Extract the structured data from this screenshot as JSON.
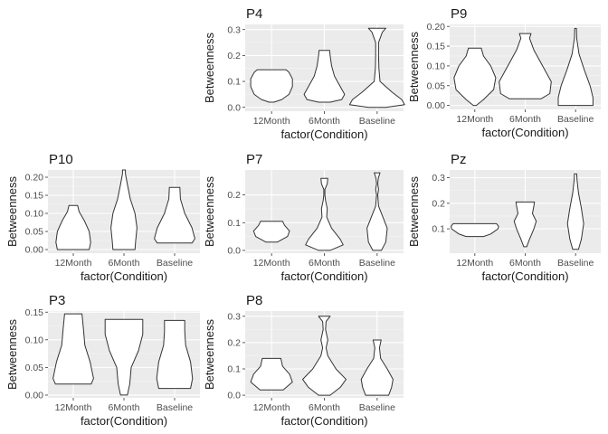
{
  "chart_data": [
    {
      "type": "violin",
      "title": "P4",
      "xlabel": "factor(Condition)",
      "ylabel": "Betweenness",
      "categories": [
        "12Month",
        "6Month",
        "Baseline"
      ],
      "ylim": [
        -0.015,
        0.32
      ],
      "yticks": [
        0.0,
        0.1,
        0.2,
        0.3
      ],
      "ytick_labels": [
        "0.0",
        "0.1",
        "0.2",
        "0.3"
      ],
      "grid": true,
      "violins": [
        {
          "category": "12Month",
          "profile": [
            [
              0.02,
              0.08
            ],
            [
              0.03,
              0.35
            ],
            [
              0.05,
              0.6
            ],
            [
              0.08,
              0.72
            ],
            [
              0.11,
              0.72
            ],
            [
              0.135,
              0.6
            ],
            [
              0.145,
              0.5
            ]
          ]
        },
        {
          "category": "6Month",
          "profile": [
            [
              0.02,
              0.2
            ],
            [
              0.03,
              0.6
            ],
            [
              0.05,
              0.7
            ],
            [
              0.08,
              0.55
            ],
            [
              0.12,
              0.35
            ],
            [
              0.16,
              0.25
            ],
            [
              0.2,
              0.2
            ],
            [
              0.22,
              0.18
            ]
          ]
        },
        {
          "category": "Baseline",
          "profile": [
            [
              0.0,
              0.3
            ],
            [
              0.01,
              0.95
            ],
            [
              0.03,
              0.85
            ],
            [
              0.06,
              0.5
            ],
            [
              0.1,
              0.1
            ],
            [
              0.15,
              0.06
            ],
            [
              0.2,
              0.05
            ],
            [
              0.25,
              0.05
            ],
            [
              0.29,
              0.18
            ],
            [
              0.305,
              0.3
            ]
          ]
        }
      ]
    },
    {
      "type": "violin",
      "title": "P9",
      "xlabel": "factor(Condition)",
      "ylabel": "Betweenness",
      "categories": [
        "12Month",
        "6Month",
        "Baseline"
      ],
      "ylim": [
        -0.01,
        0.205
      ],
      "yticks": [
        0.0,
        0.05,
        0.1,
        0.15,
        0.2
      ],
      "ytick_labels": [
        "0.00",
        "0.05",
        "0.10",
        "0.15",
        "0.20"
      ],
      "grid": true,
      "violins": [
        {
          "category": "12Month",
          "profile": [
            [
              0.0,
              0.05
            ],
            [
              0.015,
              0.3
            ],
            [
              0.04,
              0.65
            ],
            [
              0.07,
              0.72
            ],
            [
              0.1,
              0.55
            ],
            [
              0.125,
              0.3
            ],
            [
              0.145,
              0.22
            ]
          ]
        },
        {
          "category": "6Month",
          "profile": [
            [
              0.017,
              0.55
            ],
            [
              0.03,
              0.85
            ],
            [
              0.06,
              0.9
            ],
            [
              0.1,
              0.6
            ],
            [
              0.14,
              0.3
            ],
            [
              0.17,
              0.15
            ],
            [
              0.182,
              0.2
            ]
          ]
        },
        {
          "category": "Baseline",
          "profile": [
            [
              0.0,
              0.6
            ],
            [
              0.02,
              0.6
            ],
            [
              0.05,
              0.5
            ],
            [
              0.09,
              0.3
            ],
            [
              0.13,
              0.12
            ],
            [
              0.17,
              0.04
            ],
            [
              0.195,
              0.03
            ]
          ]
        }
      ]
    },
    {
      "type": "violin",
      "title": "P10",
      "xlabel": "factor(Condition)",
      "ylabel": "Betweenness",
      "categories": [
        "12Month",
        "6Month",
        "Baseline"
      ],
      "ylim": [
        -0.01,
        0.22
      ],
      "yticks": [
        0.0,
        0.05,
        0.1,
        0.15,
        0.2
      ],
      "ytick_labels": [
        "0.00",
        "0.05",
        "0.10",
        "0.15",
        "0.20"
      ],
      "grid": true,
      "violins": [
        {
          "category": "12Month",
          "profile": [
            [
              0.0,
              0.55
            ],
            [
              0.02,
              0.6
            ],
            [
              0.05,
              0.55
            ],
            [
              0.08,
              0.38
            ],
            [
              0.105,
              0.2
            ],
            [
              0.122,
              0.15
            ]
          ]
        },
        {
          "category": "6Month",
          "profile": [
            [
              0.0,
              0.38
            ],
            [
              0.02,
              0.4
            ],
            [
              0.06,
              0.45
            ],
            [
              0.1,
              0.38
            ],
            [
              0.14,
              0.22
            ],
            [
              0.18,
              0.12
            ],
            [
              0.21,
              0.05
            ],
            [
              0.22,
              0.05
            ]
          ]
        },
        {
          "category": "Baseline",
          "profile": [
            [
              0.018,
              0.6
            ],
            [
              0.03,
              0.7
            ],
            [
              0.06,
              0.6
            ],
            [
              0.1,
              0.35
            ],
            [
              0.14,
              0.2
            ],
            [
              0.172,
              0.18
            ]
          ]
        }
      ]
    },
    {
      "type": "violin",
      "title": "P7",
      "xlabel": "factor(Condition)",
      "ylabel": "Betweenness",
      "categories": [
        "12Month",
        "6Month",
        "Baseline"
      ],
      "ylim": [
        -0.01,
        0.29
      ],
      "yticks": [
        0.0,
        0.1,
        0.2
      ],
      "ytick_labels": [
        "0.0",
        "0.1",
        "0.2"
      ],
      "grid": true,
      "violins": [
        {
          "category": "12Month",
          "profile": [
            [
              0.03,
              0.2
            ],
            [
              0.05,
              0.55
            ],
            [
              0.07,
              0.62
            ],
            [
              0.09,
              0.45
            ],
            [
              0.105,
              0.38
            ]
          ]
        },
        {
          "category": "6Month",
          "profile": [
            [
              0.0,
              0.2
            ],
            [
              0.02,
              0.65
            ],
            [
              0.04,
              0.55
            ],
            [
              0.08,
              0.25
            ],
            [
              0.12,
              0.08
            ],
            [
              0.15,
              0.1
            ],
            [
              0.18,
              0.04
            ],
            [
              0.2,
              0.02
            ],
            [
              0.22,
              0.02
            ],
            [
              0.24,
              0.1
            ],
            [
              0.26,
              0.12
            ]
          ]
        },
        {
          "category": "Baseline",
          "profile": [
            [
              0.0,
              0.15
            ],
            [
              0.03,
              0.3
            ],
            [
              0.08,
              0.35
            ],
            [
              0.12,
              0.2
            ],
            [
              0.16,
              0.05
            ],
            [
              0.2,
              0.02
            ],
            [
              0.22,
              0.05
            ],
            [
              0.24,
              0.02
            ],
            [
              0.26,
              0.04
            ],
            [
              0.28,
              0.1
            ]
          ]
        }
      ]
    },
    {
      "type": "violin",
      "title": "Pz",
      "xlabel": "factor(Condition)",
      "ylabel": "Betweenness",
      "categories": [
        "12Month",
        "6Month",
        "Baseline"
      ],
      "ylim": [
        0.005,
        0.33
      ],
      "yticks": [
        0.1,
        0.2,
        0.3
      ],
      "ytick_labels": [
        "0.1",
        "0.2",
        "0.3"
      ],
      "grid": true,
      "violins": [
        {
          "category": "12Month",
          "profile": [
            [
              0.07,
              0.3
            ],
            [
              0.08,
              0.55
            ],
            [
              0.1,
              0.8
            ],
            [
              0.11,
              0.82
            ],
            [
              0.12,
              0.75
            ]
          ]
        },
        {
          "category": "6Month",
          "profile": [
            [
              0.03,
              0.05
            ],
            [
              0.06,
              0.15
            ],
            [
              0.1,
              0.3
            ],
            [
              0.13,
              0.38
            ],
            [
              0.16,
              0.25
            ],
            [
              0.19,
              0.3
            ],
            [
              0.205,
              0.32
            ]
          ]
        },
        {
          "category": "Baseline",
          "profile": [
            [
              0.02,
              0.1
            ],
            [
              0.06,
              0.2
            ],
            [
              0.12,
              0.28
            ],
            [
              0.18,
              0.2
            ],
            [
              0.24,
              0.1
            ],
            [
              0.29,
              0.05
            ],
            [
              0.315,
              0.04
            ]
          ]
        }
      ]
    },
    {
      "type": "violin",
      "title": "P3",
      "xlabel": "factor(Condition)",
      "ylabel": "Betweenness",
      "categories": [
        "12Month",
        "6Month",
        "Baseline"
      ],
      "ylim": [
        -0.005,
        0.152
      ],
      "yticks": [
        0.0,
        0.05,
        0.1,
        0.15
      ],
      "ytick_labels": [
        "0.00",
        "0.05",
        "0.10",
        "0.15"
      ],
      "grid": true,
      "violins": [
        {
          "category": "12Month",
          "profile": [
            [
              0.02,
              0.62
            ],
            [
              0.03,
              0.7
            ],
            [
              0.06,
              0.58
            ],
            [
              0.09,
              0.4
            ],
            [
              0.12,
              0.35
            ],
            [
              0.147,
              0.3
            ]
          ]
        },
        {
          "category": "6Month",
          "profile": [
            [
              0.0,
              0.12
            ],
            [
              0.02,
              0.2
            ],
            [
              0.05,
              0.25
            ],
            [
              0.08,
              0.5
            ],
            [
              0.11,
              0.65
            ],
            [
              0.137,
              0.65
            ]
          ]
        },
        {
          "category": "Baseline",
          "profile": [
            [
              0.012,
              0.55
            ],
            [
              0.03,
              0.62
            ],
            [
              0.06,
              0.55
            ],
            [
              0.09,
              0.38
            ],
            [
              0.115,
              0.35
            ],
            [
              0.135,
              0.35
            ]
          ]
        }
      ]
    },
    {
      "type": "violin",
      "title": "P8",
      "xlabel": "factor(Condition)",
      "ylabel": "Betweenness",
      "categories": [
        "12Month",
        "6Month",
        "Baseline"
      ],
      "ylim": [
        -0.01,
        0.32
      ],
      "yticks": [
        0.0,
        0.1,
        0.2,
        0.3
      ],
      "ytick_labels": [
        "0.0",
        "0.1",
        "0.2",
        "0.3"
      ],
      "grid": true,
      "violins": [
        {
          "category": "12Month",
          "profile": [
            [
              0.02,
              0.4
            ],
            [
              0.05,
              0.72
            ],
            [
              0.08,
              0.62
            ],
            [
              0.11,
              0.38
            ],
            [
              0.14,
              0.32
            ]
          ]
        },
        {
          "category": "6Month",
          "profile": [
            [
              0.0,
              0.2
            ],
            [
              0.03,
              0.55
            ],
            [
              0.06,
              0.75
            ],
            [
              0.1,
              0.4
            ],
            [
              0.15,
              0.12
            ],
            [
              0.18,
              0.06
            ],
            [
              0.21,
              0.12
            ],
            [
              0.25,
              0.04
            ],
            [
              0.28,
              0.06
            ],
            [
              0.3,
              0.2
            ]
          ]
        },
        {
          "category": "Baseline",
          "profile": [
            [
              0.0,
              0.4
            ],
            [
              0.03,
              0.5
            ],
            [
              0.06,
              0.55
            ],
            [
              0.1,
              0.35
            ],
            [
              0.14,
              0.12
            ],
            [
              0.18,
              0.08
            ],
            [
              0.21,
              0.14
            ]
          ]
        }
      ]
    }
  ]
}
